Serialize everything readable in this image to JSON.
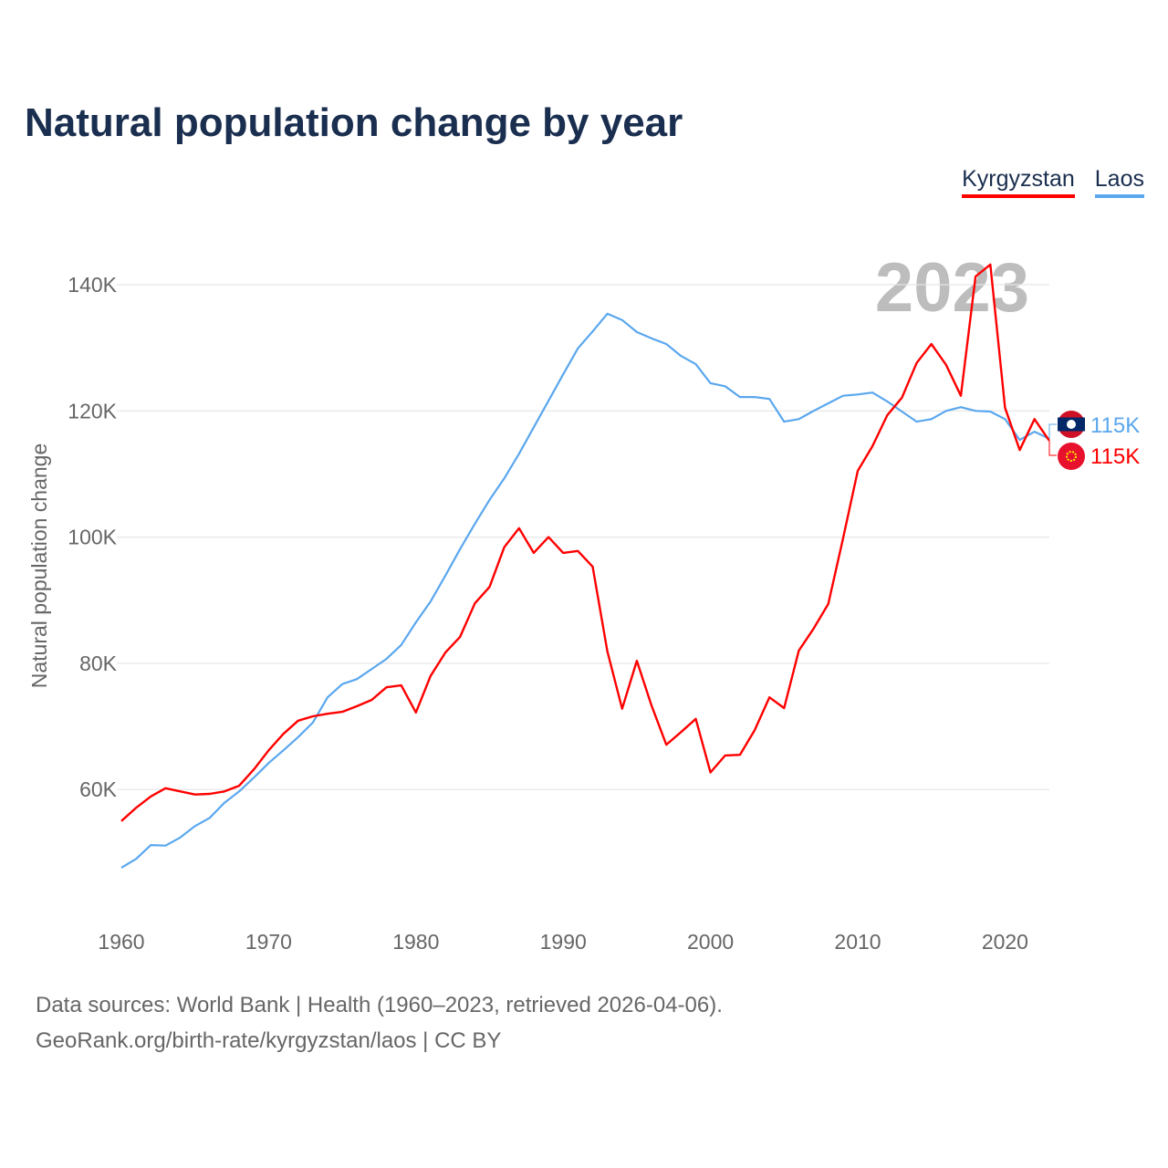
{
  "chart_data": {
    "type": "line",
    "title": "Natural population change by year",
    "xlabel": "",
    "ylabel": "Natural population change",
    "xlim": [
      1960,
      2023
    ],
    "ylim": [
      45000,
      150000
    ],
    "grid": true,
    "legend_position": "top-right",
    "watermark_year": "2023",
    "x_ticks": [
      "1960",
      "1970",
      "1980",
      "1990",
      "2000",
      "2010",
      "2020"
    ],
    "y_ticks": [
      {
        "value": 60000,
        "label": "60K"
      },
      {
        "value": 80000,
        "label": "80K"
      },
      {
        "value": 100000,
        "label": "100K"
      },
      {
        "value": 120000,
        "label": "120K"
      },
      {
        "value": 140000,
        "label": "140K"
      }
    ],
    "x_start": 1960,
    "series": [
      {
        "name": "Kyrgyzstan",
        "color": "#ff0000",
        "end_label": "115K",
        "flag": "kyrgyzstan-flag",
        "values": [
          55.0,
          57.1,
          58.9,
          60.2,
          59.7,
          59.2,
          59.3,
          59.7,
          60.6,
          63.2,
          66.2,
          68.8,
          70.9,
          71.6,
          72.0,
          72.3,
          73.2,
          74.2,
          76.2,
          76.5,
          72.2,
          78.0,
          81.7,
          84.2,
          89.5,
          92.1,
          98.4,
          101.4,
          97.5,
          100.0,
          97.5,
          97.8,
          95.3,
          81.9,
          72.8,
          80.4,
          73.3,
          67.1,
          69.1,
          71.2,
          62.7,
          65.4,
          65.5,
          69.4,
          74.6,
          72.9,
          82.0,
          85.5,
          89.4,
          99.8,
          110.5,
          114.4,
          119.3,
          122.1,
          127.6,
          130.6,
          127.3,
          122.4,
          141.3,
          143.2,
          120.5,
          113.8,
          118.7,
          115.3
        ]
      },
      {
        "name": "Laos",
        "color": "#5aa7ee",
        "end_label": "115K",
        "flag": "laos-flag",
        "values": [
          47.6,
          49.0,
          51.2,
          51.1,
          52.4,
          54.2,
          55.5,
          57.9,
          59.7,
          61.9,
          64.2,
          66.2,
          68.3,
          70.6,
          74.6,
          76.7,
          77.5,
          79.1,
          80.7,
          82.9,
          86.5,
          89.8,
          93.9,
          98.1,
          102.1,
          105.9,
          109.3,
          113.2,
          117.4,
          121.6,
          125.8,
          129.9,
          132.6,
          135.4,
          134.4,
          132.5,
          131.5,
          130.6,
          128.7,
          127.4,
          124.4,
          123.9,
          122.2,
          122.2,
          121.9,
          118.3,
          118.7,
          120.0,
          121.2,
          122.4,
          122.6,
          122.9,
          121.5,
          119.9,
          118.3,
          118.7,
          120.0,
          120.6,
          120.0,
          119.9,
          118.7,
          115.4,
          116.7,
          115.6
        ]
      }
    ],
    "value_unit": "thousands"
  },
  "footer": {
    "line1": "Data sources: World Bank | Health (1960–2023, retrieved 2026-04-06).",
    "line2": "GeoRank.org/birth-rate/kyrgyzstan/laos | CC BY"
  }
}
